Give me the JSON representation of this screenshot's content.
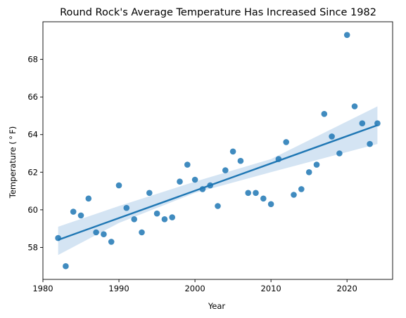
{
  "chart_data": {
    "type": "scatter",
    "title": "Round Rock's Average Temperature Has Increased Since 1982",
    "xlabel": "Year",
    "ylabel": "Temperature ($^\\circ$F)",
    "ylabel_display": "Temperature ( ° F)",
    "xlim": [
      1980,
      2026
    ],
    "ylim": [
      56.3,
      70.0
    ],
    "xticks": [
      1980,
      1990,
      2000,
      2010,
      2020
    ],
    "yticks": [
      58,
      60,
      62,
      64,
      66,
      68
    ],
    "grid": false,
    "legend": "none",
    "colors": {
      "points": "#1f77b4",
      "line": "#1f77b4",
      "band": "#c6dbef"
    },
    "points": [
      {
        "x": 1982,
        "y": 58.5
      },
      {
        "x": 1983,
        "y": 57.0
      },
      {
        "x": 1984,
        "y": 59.9
      },
      {
        "x": 1985,
        "y": 59.7
      },
      {
        "x": 1986,
        "y": 60.6
      },
      {
        "x": 1987,
        "y": 58.8
      },
      {
        "x": 1988,
        "y": 58.7
      },
      {
        "x": 1989,
        "y": 58.3
      },
      {
        "x": 1990,
        "y": 61.3
      },
      {
        "x": 1991,
        "y": 60.1
      },
      {
        "x": 1992,
        "y": 59.5
      },
      {
        "x": 1993,
        "y": 58.8
      },
      {
        "x": 1994,
        "y": 60.9
      },
      {
        "x": 1995,
        "y": 59.8
      },
      {
        "x": 1996,
        "y": 59.5
      },
      {
        "x": 1997,
        "y": 59.6
      },
      {
        "x": 1998,
        "y": 61.5
      },
      {
        "x": 1999,
        "y": 62.4
      },
      {
        "x": 2000,
        "y": 61.6
      },
      {
        "x": 2001,
        "y": 61.1
      },
      {
        "x": 2002,
        "y": 61.3
      },
      {
        "x": 2003,
        "y": 60.2
      },
      {
        "x": 2004,
        "y": 62.1
      },
      {
        "x": 2005,
        "y": 63.1
      },
      {
        "x": 2006,
        "y": 62.6
      },
      {
        "x": 2007,
        "y": 60.9
      },
      {
        "x": 2008,
        "y": 60.9
      },
      {
        "x": 2009,
        "y": 60.6
      },
      {
        "x": 2010,
        "y": 60.3
      },
      {
        "x": 2011,
        "y": 62.7
      },
      {
        "x": 2012,
        "y": 63.6
      },
      {
        "x": 2013,
        "y": 60.8
      },
      {
        "x": 2014,
        "y": 61.1
      },
      {
        "x": 2015,
        "y": 62.0
      },
      {
        "x": 2016,
        "y": 62.4
      },
      {
        "x": 2017,
        "y": 65.1
      },
      {
        "x": 2018,
        "y": 63.9
      },
      {
        "x": 2019,
        "y": 63.0
      },
      {
        "x": 2020,
        "y": 69.3
      },
      {
        "x": 2021,
        "y": 65.5
      },
      {
        "x": 2022,
        "y": 64.6
      },
      {
        "x": 2023,
        "y": 63.5
      },
      {
        "x": 2024,
        "y": 64.6
      }
    ],
    "regression": {
      "x0": 1982,
      "y0": 58.4,
      "x1": 2024,
      "y1": 64.5,
      "band_lower": [
        [
          1982,
          57.6
        ],
        [
          1990,
          59.3
        ],
        [
          2000,
          60.9
        ],
        [
          2010,
          62.0
        ],
        [
          2024,
          63.5
        ]
      ],
      "band_upper": [
        [
          1982,
          59.1
        ],
        [
          1990,
          60.2
        ],
        [
          2000,
          61.5
        ],
        [
          2010,
          62.7
        ],
        [
          2024,
          65.5
        ]
      ]
    }
  }
}
